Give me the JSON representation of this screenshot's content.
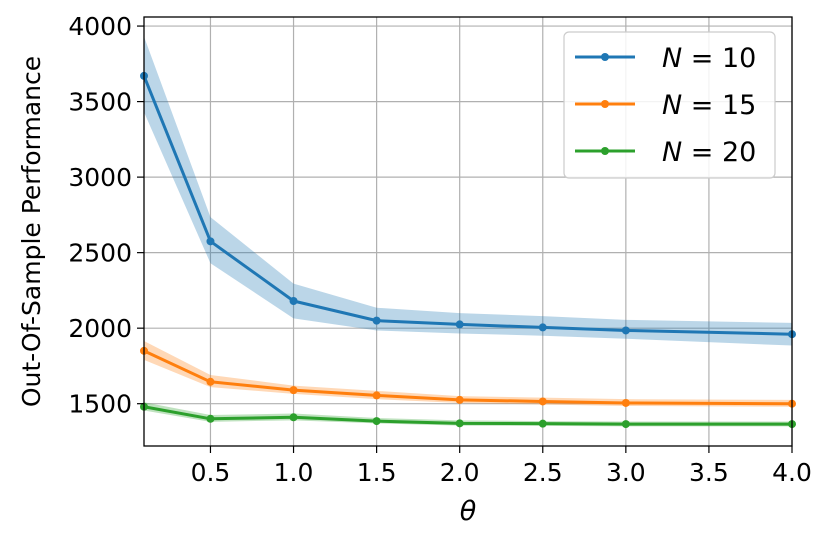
{
  "chart_data": {
    "type": "line",
    "xlabel": "θ",
    "ylabel": "Out-Of-Sample Performance",
    "xlim": [
      0.1,
      4.0
    ],
    "ylim": [
      1220,
      4060
    ],
    "xticks": [
      0.5,
      1.0,
      1.5,
      2.0,
      2.5,
      3.0,
      3.5,
      4.0
    ],
    "xtick_labels": [
      "0.5",
      "1.0",
      "1.5",
      "2.0",
      "2.5",
      "3.0",
      "3.5",
      "4.0"
    ],
    "yticks": [
      1500,
      2000,
      2500,
      3000,
      3500,
      4000
    ],
    "ytick_labels": [
      "1500",
      "2000",
      "2500",
      "3000",
      "3500",
      "4000"
    ],
    "grid": true,
    "legend_position": "top-right",
    "x": [
      0.1,
      0.5,
      1.0,
      1.5,
      2.0,
      2.5,
      3.0,
      4.0
    ],
    "series": [
      {
        "name": "N = 10",
        "legend_var": "N",
        "legend_value": "10",
        "color": "#1f77b4",
        "values": [
          3670,
          2575,
          2180,
          2050,
          2025,
          2005,
          1985,
          1960
        ],
        "band_lower": [
          3430,
          2430,
          2065,
          1985,
          1965,
          1950,
          1930,
          1885
        ],
        "band_upper": [
          3930,
          2735,
          2295,
          2135,
          2100,
          2080,
          2055,
          2035
        ]
      },
      {
        "name": "N = 15",
        "legend_var": "N",
        "legend_value": "15",
        "color": "#ff7f0e",
        "values": [
          1850,
          1645,
          1590,
          1555,
          1525,
          1515,
          1505,
          1500
        ],
        "band_lower": [
          1790,
          1610,
          1565,
          1530,
          1505,
          1495,
          1485,
          1480
        ],
        "band_upper": [
          1915,
          1690,
          1620,
          1585,
          1550,
          1540,
          1530,
          1525
        ]
      },
      {
        "name": "N = 20",
        "legend_var": "N",
        "legend_value": "20",
        "color": "#2ca02c",
        "values": [
          1480,
          1400,
          1410,
          1385,
          1370,
          1368,
          1365,
          1365
        ],
        "band_lower": [
          1455,
          1380,
          1390,
          1370,
          1355,
          1353,
          1350,
          1350
        ],
        "band_upper": [
          1510,
          1425,
          1435,
          1405,
          1390,
          1385,
          1382,
          1382
        ]
      }
    ]
  }
}
